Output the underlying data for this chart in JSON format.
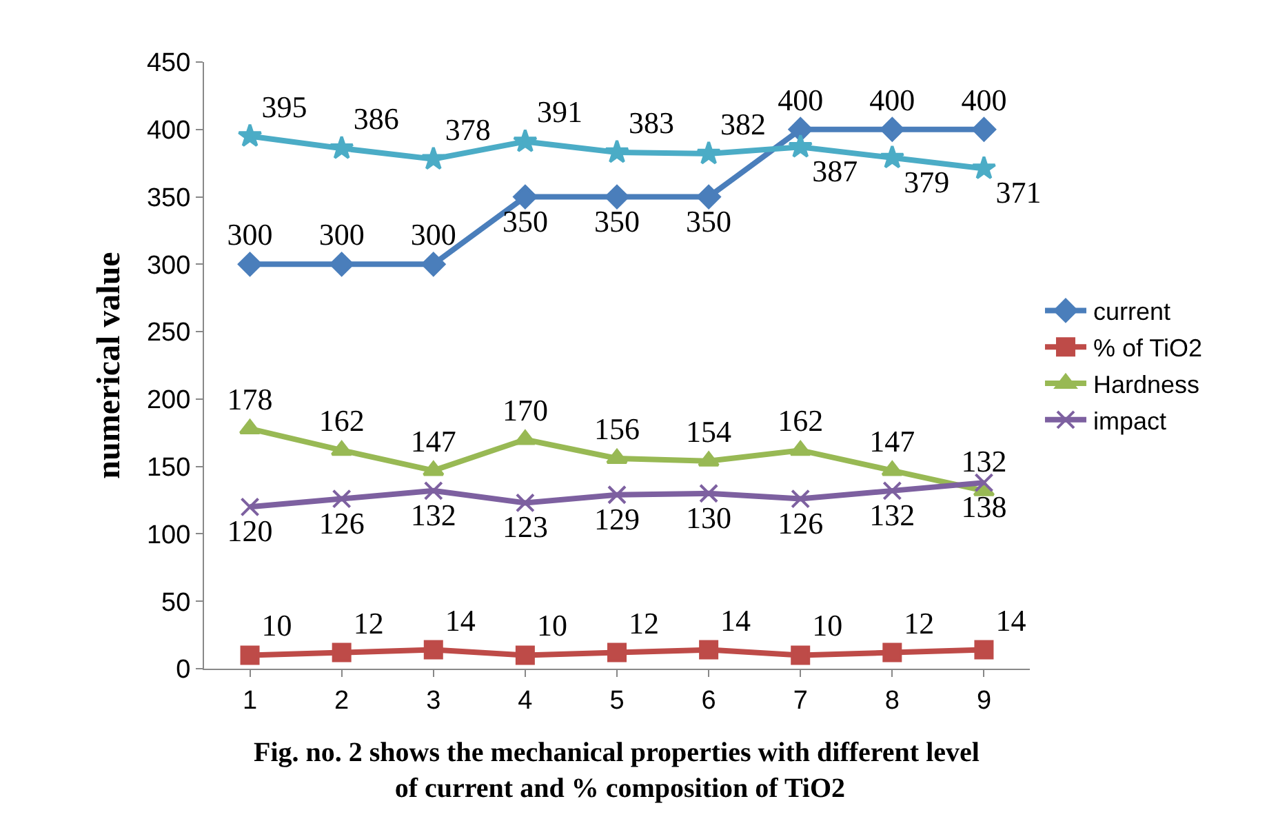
{
  "chart_data": {
    "type": "line",
    "ylabel": "numerical value",
    "categories": [
      "1",
      "2",
      "3",
      "4",
      "5",
      "6",
      "7",
      "8",
      "9"
    ],
    "series": [
      {
        "name": "current",
        "color": "#4a7ebb",
        "marker": "diamond",
        "values": [
          300,
          300,
          300,
          350,
          350,
          350,
          400,
          400,
          400
        ]
      },
      {
        "name": "% of TiO2",
        "color": "#be4b48",
        "marker": "square",
        "values": [
          10,
          12,
          14,
          10,
          12,
          14,
          10,
          12,
          14
        ]
      },
      {
        "name": "Hardness",
        "color": "#98b954",
        "marker": "triangle",
        "values": [
          178,
          162,
          147,
          170,
          156,
          154,
          162,
          147,
          132
        ]
      },
      {
        "name": "impact",
        "color": "#7d60a0",
        "marker": "cross",
        "values": [
          120,
          126,
          132,
          123,
          129,
          130,
          126,
          132,
          138
        ]
      },
      {
        "color": "#4bacc6",
        "marker": "star",
        "values": [
          395,
          386,
          378,
          391,
          383,
          382,
          387,
          379,
          371
        ]
      }
    ],
    "ylim": [
      0,
      450
    ],
    "yticks": [
      0,
      50,
      100,
      150,
      200,
      250,
      300,
      350,
      400,
      450
    ],
    "grid": false,
    "legend": "right",
    "data_labels": true,
    "annotations": [
      "Fig. no. 2 shows the mechanical properties with different level of current and % composition of TiO2"
    ]
  }
}
